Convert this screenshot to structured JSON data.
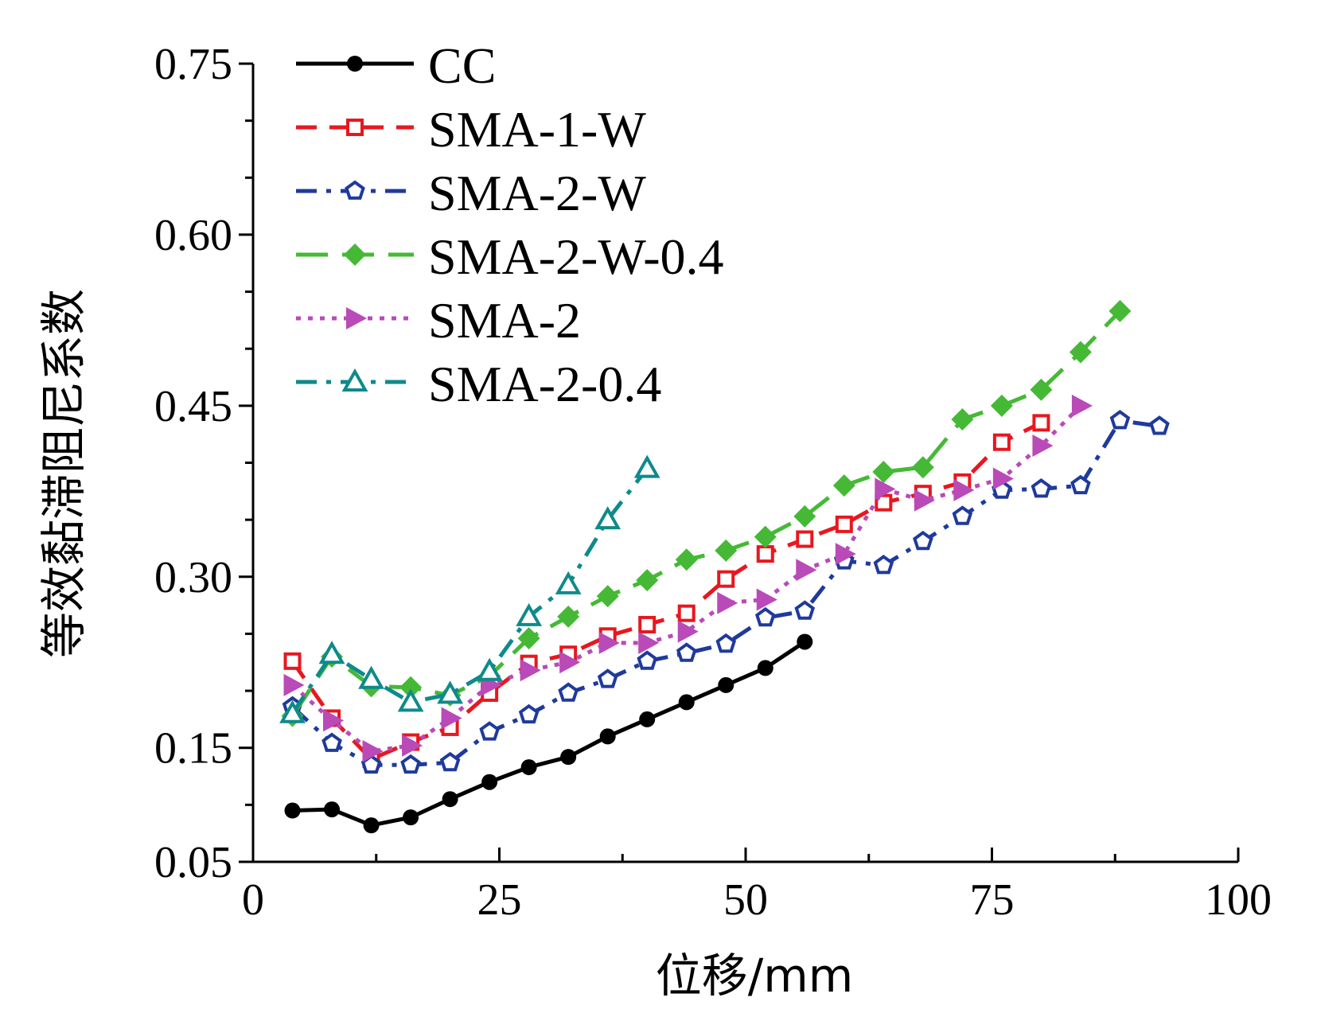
{
  "chart_data": {
    "type": "line",
    "title": "",
    "xlabel": "位移/mm",
    "ylabel": "等效黏滞阻尼系数",
    "xlim": [
      0,
      100
    ],
    "ylim": [
      0.05,
      0.75
    ],
    "x_ticks": [
      "0",
      "25",
      "50",
      "75",
      "100"
    ],
    "y_ticks": [
      "0.05",
      "0.15",
      "0.30",
      "0.45",
      "0.60",
      "0.75"
    ],
    "grid": false,
    "legend_position": "top-left",
    "series": [
      {
        "name": "CC",
        "color": "#000000",
        "dash": "solid",
        "marker": "dot",
        "points": [
          [
            4,
            0.095
          ],
          [
            8,
            0.096
          ],
          [
            12,
            0.082
          ],
          [
            16,
            0.089
          ],
          [
            20,
            0.105
          ],
          [
            24,
            0.12
          ],
          [
            28,
            0.133
          ],
          [
            32,
            0.142
          ],
          [
            36,
            0.16
          ],
          [
            40,
            0.175
          ],
          [
            44,
            0.19
          ],
          [
            48,
            0.205
          ],
          [
            52,
            0.22
          ],
          [
            56,
            0.243
          ]
        ]
      },
      {
        "name": "SMA-1-W",
        "color": "#e8171f",
        "dash": "dash",
        "marker": "square",
        "points": [
          [
            4,
            0.226
          ],
          [
            8,
            0.176
          ],
          [
            12,
            0.14
          ],
          [
            16,
            0.155
          ],
          [
            20,
            0.168
          ],
          [
            24,
            0.198
          ],
          [
            28,
            0.224
          ],
          [
            32,
            0.232
          ],
          [
            36,
            0.248
          ],
          [
            40,
            0.258
          ],
          [
            44,
            0.268
          ],
          [
            48,
            0.298
          ],
          [
            52,
            0.32
          ],
          [
            56,
            0.333
          ],
          [
            60,
            0.346
          ],
          [
            64,
            0.365
          ],
          [
            68,
            0.373
          ],
          [
            72,
            0.383
          ],
          [
            76,
            0.418
          ],
          [
            80,
            0.435
          ]
        ]
      },
      {
        "name": "SMA-2-W",
        "color": "#1f3a9c",
        "dash": "dashdot",
        "marker": "pentagon",
        "points": [
          [
            4,
            0.186
          ],
          [
            8,
            0.154
          ],
          [
            12,
            0.135
          ],
          [
            16,
            0.135
          ],
          [
            20,
            0.137
          ],
          [
            24,
            0.164
          ],
          [
            28,
            0.179
          ],
          [
            32,
            0.198
          ],
          [
            36,
            0.21
          ],
          [
            40,
            0.226
          ],
          [
            44,
            0.233
          ],
          [
            48,
            0.241
          ],
          [
            52,
            0.264
          ],
          [
            56,
            0.27
          ],
          [
            60,
            0.314
          ],
          [
            64,
            0.31
          ],
          [
            68,
            0.331
          ],
          [
            72,
            0.353
          ],
          [
            76,
            0.376
          ],
          [
            80,
            0.377
          ],
          [
            84,
            0.38
          ],
          [
            88,
            0.437
          ],
          [
            92,
            0.432
          ]
        ]
      },
      {
        "name": "SMA-2-W-0.4",
        "color": "#45b935",
        "dash": "longdash",
        "marker": "diamond",
        "points": [
          [
            4,
            0.178
          ],
          [
            8,
            0.23
          ],
          [
            12,
            0.204
          ],
          [
            16,
            0.203
          ],
          [
            20,
            0.196
          ],
          [
            24,
            0.213
          ],
          [
            28,
            0.246
          ],
          [
            32,
            0.265
          ],
          [
            36,
            0.283
          ],
          [
            40,
            0.297
          ],
          [
            44,
            0.315
          ],
          [
            48,
            0.323
          ],
          [
            52,
            0.335
          ],
          [
            56,
            0.353
          ],
          [
            60,
            0.38
          ],
          [
            64,
            0.392
          ],
          [
            68,
            0.396
          ],
          [
            72,
            0.438
          ],
          [
            76,
            0.45
          ],
          [
            80,
            0.464
          ],
          [
            84,
            0.497
          ],
          [
            88,
            0.533
          ]
        ]
      },
      {
        "name": "SMA-2",
        "color": "#b94ab8",
        "dash": "dot",
        "marker": "triangle-right",
        "points": [
          [
            4,
            0.205
          ],
          [
            8,
            0.174
          ],
          [
            12,
            0.147
          ],
          [
            16,
            0.152
          ],
          [
            20,
            0.176
          ],
          [
            24,
            0.205
          ],
          [
            28,
            0.218
          ],
          [
            32,
            0.225
          ],
          [
            36,
            0.242
          ],
          [
            40,
            0.242
          ],
          [
            44,
            0.252
          ],
          [
            48,
            0.277
          ],
          [
            52,
            0.28
          ],
          [
            56,
            0.306
          ],
          [
            60,
            0.32
          ],
          [
            64,
            0.377
          ],
          [
            68,
            0.367
          ],
          [
            72,
            0.376
          ],
          [
            76,
            0.386
          ],
          [
            80,
            0.415
          ],
          [
            84,
            0.45
          ]
        ]
      },
      {
        "name": "SMA-2-0.4",
        "color": "#0f8a8a",
        "dash": "dashdot",
        "marker": "triangle-up",
        "points": [
          [
            4,
            0.18
          ],
          [
            8,
            0.232
          ],
          [
            12,
            0.21
          ],
          [
            16,
            0.19
          ],
          [
            20,
            0.197
          ],
          [
            24,
            0.217
          ],
          [
            28,
            0.265
          ],
          [
            32,
            0.293
          ],
          [
            36,
            0.35
          ],
          [
            40,
            0.395
          ]
        ]
      }
    ]
  }
}
